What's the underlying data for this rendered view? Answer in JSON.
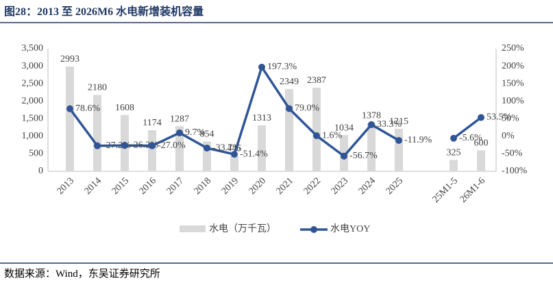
{
  "chart_data": {
    "type": "bar+line",
    "title": "图28：2013 至 2026M6 水电新增装机容量",
    "source": "数据来源：Wind，东吴证券研究所",
    "categories": [
      "2013",
      "2014",
      "2015",
      "2016",
      "2017",
      "2018",
      "2019",
      "2020",
      "2021",
      "2022",
      "2023",
      "2024",
      "2025",
      null,
      "25M1-5",
      "26M1-6"
    ],
    "series": [
      {
        "name": "水电（万千瓦）",
        "type": "bar",
        "color": "#d9d9d9",
        "values": [
          2993,
          2180,
          1608,
          1174,
          1287,
          854,
          445,
          1313,
          2349,
          2387,
          1034,
          1378,
          1215,
          null,
          325,
          600
        ]
      },
      {
        "name": "水电YOY",
        "type": "line",
        "axis": "y2",
        "color": "#2f5597",
        "values": [
          78.6,
          -27.2,
          -26.2,
          -27.0,
          9.7,
          -33.7,
          -51.4,
          197.3,
          79.0,
          1.6,
          -56.7,
          33.3,
          -11.9,
          null,
          -5.6,
          53.5
        ],
        "value_labels": [
          "78.6%",
          "-27.2%",
          "-26.2%",
          "-27.0%",
          "9.7%",
          "-33.7%",
          "-51.4%",
          "197.3%",
          "79.0%",
          "1.6%",
          "-56.7%",
          "33.3%",
          "-11.9%",
          null,
          "-5.6%",
          "53.5%"
        ]
      }
    ],
    "ylim": [
      0,
      3500
    ],
    "yticks": [
      0,
      500,
      {
        "value": 1000,
        "label": "1,000"
      },
      {
        "value": 1500,
        "label": "1,500"
      },
      {
        "value": 2000,
        "label": "2,000"
      },
      {
        "value": 2500,
        "label": "2,500"
      },
      {
        "value": 3000,
        "label": "3,000"
      },
      {
        "value": 3500,
        "label": "3,500"
      }
    ],
    "y2lim": [
      -100,
      250
    ],
    "y2ticks": [
      {
        "value": -100,
        "label": "-100%"
      },
      {
        "value": -50,
        "label": "-50%"
      },
      {
        "value": 0,
        "label": "0%"
      },
      {
        "value": 50,
        "label": "50%"
      },
      {
        "value": 100,
        "label": "100%"
      },
      {
        "value": 150,
        "label": "150%"
      },
      {
        "value": 200,
        "label": "200%"
      },
      {
        "value": 250,
        "label": "250%"
      }
    ],
    "legend": "bottom"
  }
}
